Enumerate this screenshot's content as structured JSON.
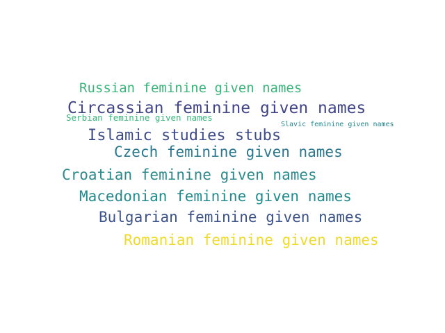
{
  "words": [
    {
      "text": "Russian feminine given names",
      "color": "#3bb47a"
    },
    {
      "text": "Circassian feminine given names",
      "color": "#414487"
    },
    {
      "text": "Serbian feminine given names",
      "color": "#35b779"
    },
    {
      "text": "Slavic feminine given names",
      "color": "#25868e"
    },
    {
      "text": "Islamic studies stubs",
      "color": "#3e4c8a"
    },
    {
      "text": "Czech feminine given names",
      "color": "#2a788e"
    },
    {
      "text": "Croatian feminine given names",
      "color": "#2c8a8c"
    },
    {
      "text": "Macedonian feminine given names",
      "color": "#238a8d"
    },
    {
      "text": "Bulgarian feminine given names",
      "color": "#3b528b"
    },
    {
      "text": "Romanian feminine given names",
      "color": "#f0d92a"
    }
  ]
}
